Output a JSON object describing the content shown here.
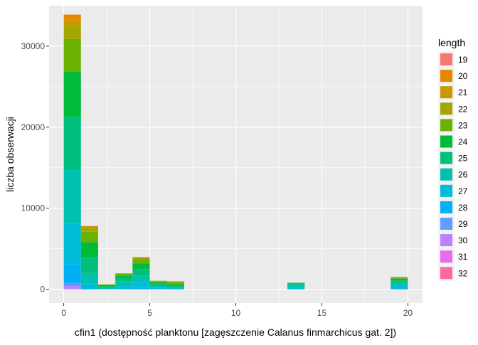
{
  "chart_data": {
    "type": "bar",
    "stacked": true,
    "xlabel": "cfin1 (dostępność planktonu [zagęszczenie Calanus finmarchicus gat. 2])",
    "ylabel": "liczba obserwacji",
    "xlim": [
      -0.85,
      20.85
    ],
    "ylim": [
      -1700,
      35000
    ],
    "x_ticks": [
      0,
      5,
      10,
      15,
      20
    ],
    "y_ticks": [
      0,
      10000,
      20000,
      30000
    ],
    "x_tick_labels": [
      "0",
      "5",
      "10",
      "15",
      "20"
    ],
    "y_tick_labels": [
      "0",
      "10000",
      "20000",
      "30000"
    ],
    "grid": true,
    "legend_position": "right",
    "bin_width": 1,
    "bins": [
      [
        0,
        1
      ],
      [
        1,
        2
      ],
      [
        2,
        3
      ],
      [
        3,
        4
      ],
      [
        4,
        5
      ],
      [
        5,
        6
      ],
      [
        6,
        7
      ],
      [
        13,
        14
      ],
      [
        19,
        20
      ]
    ],
    "series": [
      {
        "name": "19",
        "color": "#F8766D",
        "values": [
          0,
          0,
          0,
          0,
          0,
          0,
          0,
          0,
          0
        ]
      },
      {
        "name": "20",
        "color": "#E58700",
        "values": [
          600,
          0,
          0,
          0,
          0,
          0,
          0,
          0,
          0
        ]
      },
      {
        "name": "21",
        "color": "#C99800",
        "values": [
          700,
          200,
          0,
          0,
          80,
          0,
          50,
          0,
          0
        ]
      },
      {
        "name": "22",
        "color": "#A3A500",
        "values": [
          1700,
          500,
          0,
          60,
          200,
          50,
          100,
          0,
          0
        ]
      },
      {
        "name": "23",
        "color": "#6BB100",
        "values": [
          4000,
          1300,
          100,
          200,
          500,
          150,
          200,
          0,
          200
        ]
      },
      {
        "name": "24",
        "color": "#00BA38",
        "values": [
          5600,
          1800,
          150,
          300,
          700,
          150,
          200,
          100,
          200
        ]
      },
      {
        "name": "25",
        "color": "#00BF7D",
        "values": [
          6500,
          2000,
          200,
          400,
          800,
          250,
          200,
          150,
          200
        ]
      },
      {
        "name": "26",
        "color": "#00C0AF",
        "values": [
          6700,
          1300,
          100,
          600,
          800,
          250,
          150,
          300,
          400
        ]
      },
      {
        "name": "27",
        "color": "#00BCD8",
        "values": [
          5000,
          600,
          50,
          400,
          700,
          150,
          100,
          250,
          400
        ]
      },
      {
        "name": "28",
        "color": "#00B0F6",
        "values": [
          2300,
          100,
          0,
          0,
          200,
          50,
          0,
          0,
          100
        ]
      },
      {
        "name": "29",
        "color": "#619CFF",
        "values": [
          400,
          0,
          0,
          0,
          0,
          0,
          0,
          0,
          0
        ]
      },
      {
        "name": "30",
        "color": "#B983FF",
        "values": [
          400,
          0,
          0,
          0,
          0,
          0,
          0,
          0,
          0
        ]
      },
      {
        "name": "31",
        "color": "#E76BF3",
        "values": [
          0,
          0,
          0,
          0,
          0,
          0,
          0,
          0,
          0
        ]
      },
      {
        "name": "32",
        "color": "#FF67A4",
        "values": [
          0,
          0,
          0,
          0,
          0,
          0,
          0,
          0,
          0
        ]
      }
    ]
  },
  "legend": {
    "title": "length"
  },
  "colors": {
    "panel_background": "#EBEBEB",
    "grid_major": "#FFFFFF",
    "axis_text": "#4D4D4D",
    "axis_title": "#000000"
  }
}
